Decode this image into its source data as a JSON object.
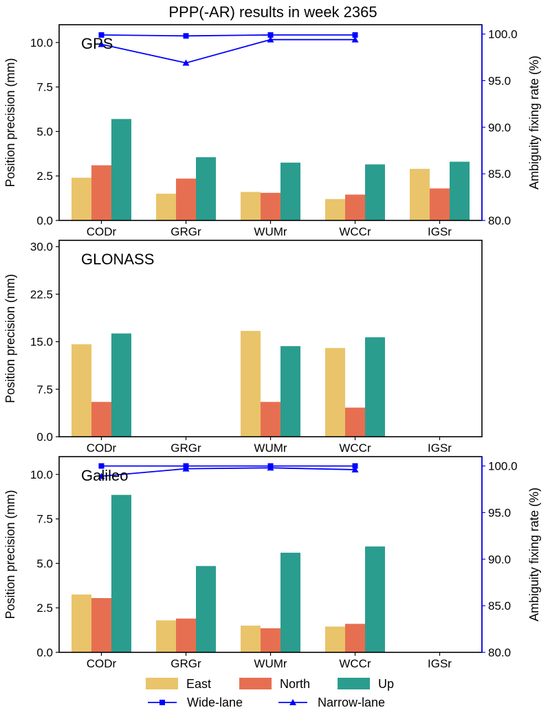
{
  "chart_data": {
    "type": "bar",
    "title": "PPP(-AR) results in week 2365",
    "categories": [
      "CODr",
      "GRGr",
      "WUMr",
      "WCCr",
      "IGSr"
    ],
    "colors": {
      "East": "#e9c46a",
      "North": "#e76f51",
      "Up": "#2a9d8f",
      "lines": "#0000ff",
      "axis": "#000000"
    },
    "legend": {
      "bars": [
        "East",
        "North",
        "Up"
      ],
      "lines": [
        "Wide-lane",
        "Narrow-lane"
      ],
      "placement": "bottom-center"
    },
    "panels": [
      {
        "name": "GPS",
        "ylabel": "Position precision (mm)",
        "ylim": [
          0,
          11.0
        ],
        "yticks": [
          "0.0",
          "2.5",
          "5.0",
          "7.5",
          "10.0"
        ],
        "series": [
          {
            "name": "East",
            "values": [
              2.4,
              1.5,
              1.6,
              1.2,
              2.9
            ]
          },
          {
            "name": "North",
            "values": [
              3.1,
              2.35,
              1.55,
              1.45,
              1.8
            ]
          },
          {
            "name": "Up",
            "values": [
              5.7,
              3.55,
              3.25,
              3.15,
              3.3
            ]
          }
        ],
        "y2label": "Ambiguity fixing rate (%)",
        "y2lim": [
          80.0,
          101.0
        ],
        "y2ticks": [
          "80.0",
          "85.0",
          "90.0",
          "95.0",
          "100.0"
        ],
        "lines": [
          {
            "name": "Wide-lane",
            "marker": "square",
            "values": [
              99.9,
              99.8,
              99.9,
              99.9,
              null
            ]
          },
          {
            "name": "Narrow-lane",
            "marker": "triangle",
            "values": [
              98.9,
              96.9,
              99.4,
              99.4,
              null
            ]
          }
        ]
      },
      {
        "name": "GLONASS",
        "ylabel": "Position precision (mm)",
        "ylim": [
          0,
          31.0
        ],
        "yticks": [
          "0.0",
          "7.5",
          "15.0",
          "22.5",
          "30.0"
        ],
        "series": [
          {
            "name": "East",
            "values": [
              14.6,
              null,
              16.7,
              14.0,
              null
            ]
          },
          {
            "name": "North",
            "values": [
              5.5,
              null,
              5.5,
              4.6,
              null
            ]
          },
          {
            "name": "Up",
            "values": [
              16.3,
              null,
              14.3,
              15.7,
              null
            ]
          }
        ],
        "y2label": "",
        "y2lim": null,
        "y2ticks": [],
        "lines": []
      },
      {
        "name": "Galileo",
        "ylabel": "Position precision (mm)",
        "ylim": [
          0,
          11.0
        ],
        "yticks": [
          "0.0",
          "2.5",
          "5.0",
          "7.5",
          "10.0"
        ],
        "series": [
          {
            "name": "East",
            "values": [
              3.25,
              1.8,
              1.5,
              1.45,
              null
            ]
          },
          {
            "name": "North",
            "values": [
              3.05,
              1.9,
              1.35,
              1.6,
              null
            ]
          },
          {
            "name": "Up",
            "values": [
              8.85,
              4.85,
              5.6,
              5.95,
              null
            ]
          }
        ],
        "y2label": "Ambiguity fixing rate (%)",
        "y2lim": [
          80.0,
          101.0
        ],
        "y2ticks": [
          "80.0",
          "85.0",
          "90.0",
          "95.0",
          "100.0"
        ],
        "lines": [
          {
            "name": "Wide-lane",
            "marker": "square",
            "values": [
              100.0,
              100.0,
              100.0,
              100.0,
              null
            ]
          },
          {
            "name": "Narrow-lane",
            "marker": "triangle",
            "values": [
              98.9,
              99.7,
              99.8,
              99.6,
              null
            ]
          }
        ]
      }
    ]
  }
}
